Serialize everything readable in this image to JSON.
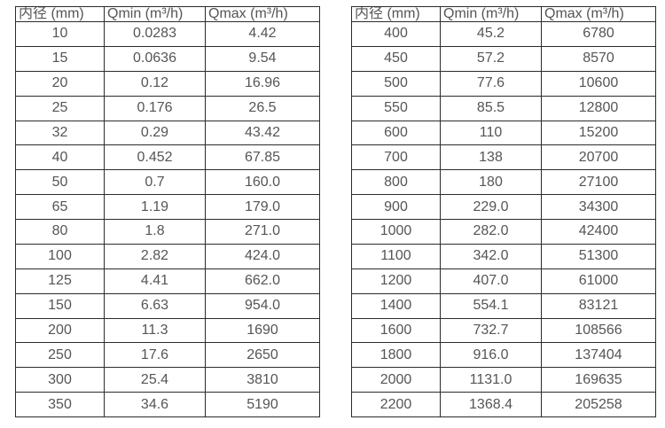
{
  "colors": {
    "background": "#ffffff",
    "border": "#2b2b2b",
    "text": "#555555"
  },
  "chart_data": [
    {
      "type": "table",
      "title": "",
      "columns": [
        "内径 (mm)",
        "Qmin (m³/h)",
        "Qmax (m³/h)"
      ],
      "rows": [
        [
          "10",
          "0.0283",
          "4.42"
        ],
        [
          "15",
          "0.0636",
          "9.54"
        ],
        [
          "20",
          "0.12",
          "16.96"
        ],
        [
          "25",
          "0.176",
          "26.5"
        ],
        [
          "32",
          "0.29",
          "43.42"
        ],
        [
          "40",
          "0.452",
          "67.85"
        ],
        [
          "50",
          "0.7",
          "160.0"
        ],
        [
          "65",
          "1.19",
          "179.0"
        ],
        [
          "80",
          "1.8",
          "271.0"
        ],
        [
          "100",
          "2.82",
          "424.0"
        ],
        [
          "125",
          "4.41",
          "662.0"
        ],
        [
          "150",
          "6.63",
          "954.0"
        ],
        [
          "200",
          "11.3",
          "1690"
        ],
        [
          "250",
          "17.6",
          "2650"
        ],
        [
          "300",
          "25.4",
          "3810"
        ],
        [
          "350",
          "34.6",
          "5190"
        ]
      ]
    },
    {
      "type": "table",
      "title": "",
      "columns": [
        "内径 (mm)",
        "Qmin (m³/h)",
        "Qmax (m³/h)"
      ],
      "rows": [
        [
          "400",
          "45.2",
          "6780"
        ],
        [
          "450",
          "57.2",
          "8570"
        ],
        [
          "500",
          "77.6",
          "10600"
        ],
        [
          "550",
          "85.5",
          "12800"
        ],
        [
          "600",
          "110",
          "15200"
        ],
        [
          "700",
          "138",
          "20700"
        ],
        [
          "800",
          "180",
          "27100"
        ],
        [
          "900",
          "229.0",
          "34300"
        ],
        [
          "1000",
          "282.0",
          "42400"
        ],
        [
          "1100",
          "342.0",
          "51300"
        ],
        [
          "1200",
          "407.0",
          "61000"
        ],
        [
          "1400",
          "554.1",
          "83121"
        ],
        [
          "1600",
          "732.7",
          "108566"
        ],
        [
          "1800",
          "916.0",
          "137404"
        ],
        [
          "2000",
          "1131.0",
          "169635"
        ],
        [
          "2200",
          "1368.4",
          "205258"
        ]
      ]
    }
  ]
}
